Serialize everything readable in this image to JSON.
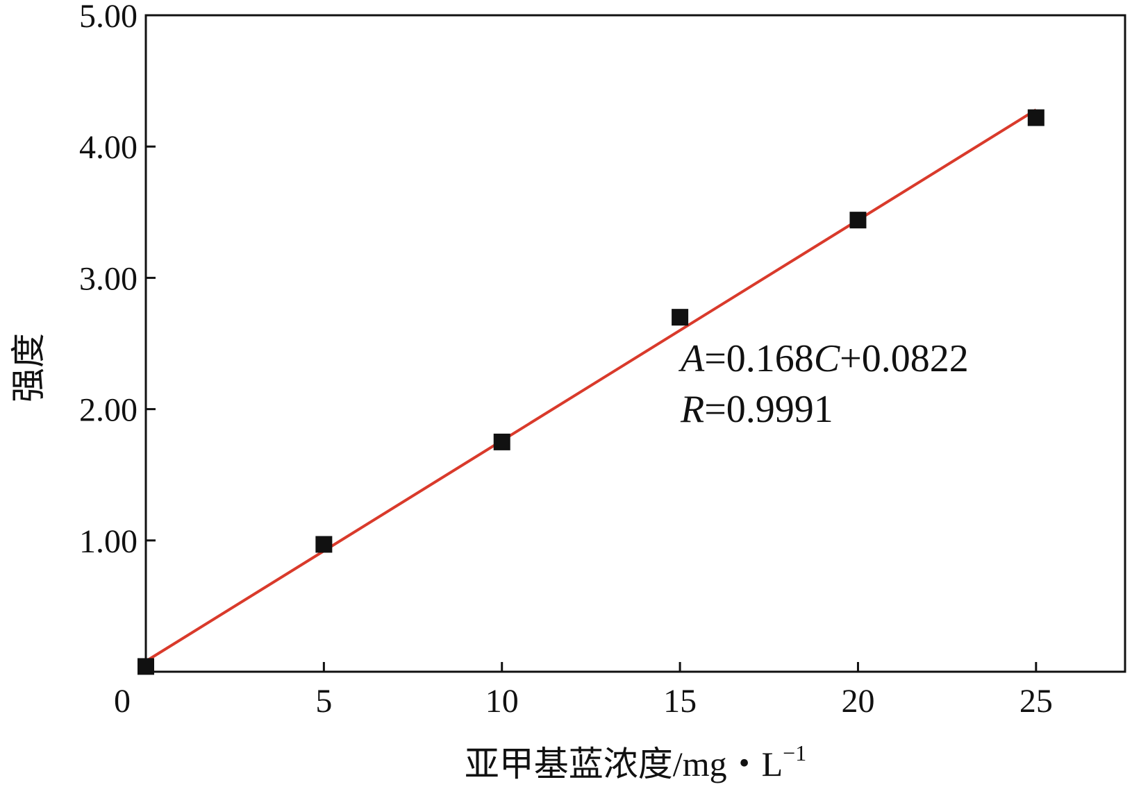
{
  "chart_data": {
    "type": "scatter",
    "title": "",
    "xlabel": "亚甲基蓝浓度/mg・L",
    "xlabel_superscript": "−1",
    "ylabel": "强度",
    "xlim": [
      0,
      27.5
    ],
    "ylim": [
      0,
      5.0
    ],
    "x_ticks": [
      0,
      5,
      10,
      15,
      20,
      25
    ],
    "x_tick_labels": [
      "0",
      "5",
      "10",
      "15",
      "20",
      "25"
    ],
    "y_ticks": [
      1.0,
      2.0,
      3.0,
      4.0,
      5.0
    ],
    "y_tick_labels": [
      "1.00",
      "2.00",
      "3.00",
      "4.00",
      "5.00"
    ],
    "grid": false,
    "series": [
      {
        "marker": "square",
        "color": "#111111",
        "x": [
          0,
          5,
          10,
          15,
          20,
          25
        ],
        "y": [
          0.04,
          0.97,
          1.75,
          2.7,
          3.44,
          4.22
        ]
      }
    ],
    "fit_line": {
      "color": "#d93a2b",
      "x": [
        0,
        25
      ],
      "y": [
        0.08,
        4.28
      ]
    },
    "annotation": {
      "equation_parts": [
        "A",
        "=0.168",
        "C",
        "+0.0822"
      ],
      "r_parts": [
        "R",
        "=0.9991"
      ]
    }
  }
}
